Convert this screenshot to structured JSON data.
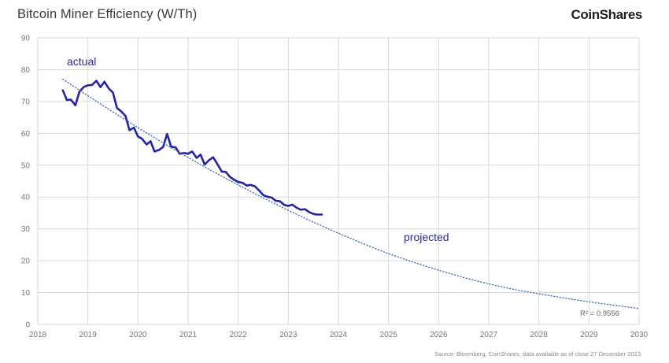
{
  "header": {
    "title": "Bitcoin Miner Efficiency (W/Th)",
    "brand": "CoinShares"
  },
  "footer": {
    "source": "Source: Bloomberg, CoinShares, data available as of close 27 December 2023"
  },
  "chart_data": {
    "type": "line",
    "title": "Bitcoin Miner Efficiency (W/Th)",
    "xlabel": "",
    "ylabel": "",
    "xlim": [
      2018,
      2030
    ],
    "ylim": [
      0,
      90
    ],
    "x_ticks": [
      "2018",
      "2019",
      "2020",
      "2021",
      "2022",
      "2023",
      "2024",
      "2025",
      "2026",
      "2027",
      "2028",
      "2029",
      "2030"
    ],
    "y_ticks": [
      "0",
      "10",
      "20",
      "30",
      "40",
      "50",
      "60",
      "70",
      "80",
      "90"
    ],
    "grid": true,
    "annotations": {
      "actual": "actual",
      "projected": "projected",
      "r_squared": "R² = 0.9556"
    },
    "colors": {
      "actual": "#2323a8",
      "projected": "#3a6cb5",
      "grid": "#d9d9d9"
    },
    "series": [
      {
        "name": "actual",
        "style": "solid",
        "x": [
          2018.5,
          2018.58,
          2018.66,
          2018.75,
          2018.83,
          2018.92,
          2019.0,
          2019.08,
          2019.17,
          2019.25,
          2019.33,
          2019.42,
          2019.5,
          2019.58,
          2019.67,
          2019.75,
          2019.83,
          2019.92,
          2020.0,
          2020.08,
          2020.17,
          2020.25,
          2020.33,
          2020.42,
          2020.5,
          2020.58,
          2020.66,
          2020.75,
          2020.83,
          2020.92,
          2021.0,
          2021.08,
          2021.17,
          2021.25,
          2021.33,
          2021.42,
          2021.5,
          2021.58,
          2021.67,
          2021.75,
          2021.83,
          2021.92,
          2022.0,
          2022.08,
          2022.17,
          2022.25,
          2022.33,
          2022.42,
          2022.5,
          2022.58,
          2022.67,
          2022.75,
          2022.83,
          2022.92,
          2023.0,
          2023.08,
          2023.17,
          2023.25,
          2023.33,
          2023.42,
          2023.5,
          2023.58,
          2023.67
        ],
        "values": [
          73.5,
          70.5,
          70.6,
          68.8,
          73.0,
          74.6,
          75.1,
          75.2,
          76.5,
          74.5,
          76.2,
          74.0,
          72.8,
          68.0,
          66.8,
          65.5,
          61.0,
          61.8,
          59.0,
          58.3,
          56.5,
          57.5,
          54.3,
          54.8,
          55.7,
          59.8,
          55.8,
          55.6,
          53.6,
          53.8,
          53.6,
          54.3,
          52.3,
          53.3,
          50.2,
          51.6,
          52.5,
          50.5,
          48.0,
          47.9,
          46.4,
          45.4,
          44.7,
          44.5,
          43.6,
          43.8,
          43.4,
          42.0,
          40.6,
          40.1,
          39.8,
          38.8,
          38.7,
          37.5,
          37.2,
          37.6,
          36.6,
          36.0,
          36.2,
          35.2,
          34.7,
          34.5,
          34.5
        ]
      },
      {
        "name": "projected",
        "style": "dotted",
        "x": [
          2018.5,
          2019.0,
          2019.5,
          2020.0,
          2020.5,
          2021.0,
          2021.5,
          2022.0,
          2022.5,
          2023.0,
          2023.5,
          2024.0,
          2024.5,
          2025.0,
          2025.5,
          2026.0,
          2026.5,
          2027.0,
          2027.5,
          2028.0,
          2028.5,
          2029.0,
          2029.5,
          2030.0
        ],
        "values": [
          77.0,
          71.8,
          66.7,
          61.8,
          57.0,
          52.4,
          48.0,
          43.8,
          39.7,
          35.8,
          32.1,
          28.6,
          25.3,
          22.2,
          19.5,
          17.0,
          14.7,
          12.7,
          11.0,
          9.6,
          8.3,
          7.1,
          6.0,
          5.0
        ]
      }
    ]
  }
}
